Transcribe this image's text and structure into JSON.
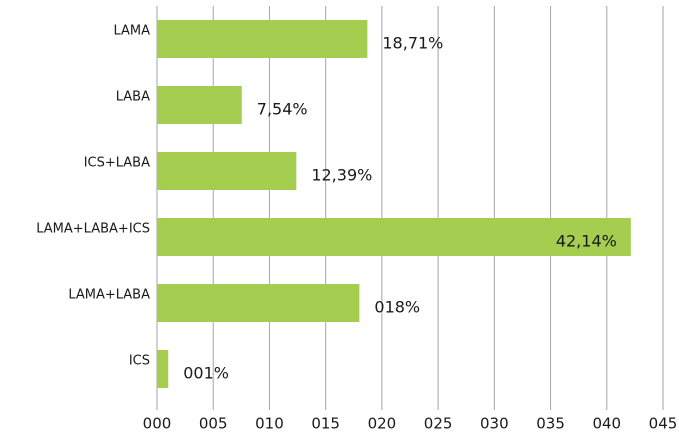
{
  "chart_data": {
    "type": "barh",
    "categories": [
      "LAMA",
      "LABA",
      "ICS+LABA",
      "LAMA+LABA+ICS",
      "LAMA+LABA",
      "ICS"
    ],
    "values": [
      18.71,
      7.54,
      12.39,
      42.14,
      18,
      1
    ],
    "value_labels": [
      "18,71%",
      "7,54%",
      "12,39%",
      "42,14%",
      "018%",
      "001%"
    ],
    "color": "#a5cd4f",
    "xlim": [
      0,
      45
    ],
    "xticks": [
      {
        "value": 0,
        "label": "000"
      },
      {
        "value": 5,
        "label": "005"
      },
      {
        "value": 10,
        "label": "010"
      },
      {
        "value": 15,
        "label": "015"
      },
      {
        "value": 20,
        "label": "020"
      },
      {
        "value": 25,
        "label": "025"
      },
      {
        "value": 30,
        "label": "030"
      },
      {
        "value": 35,
        "label": "035"
      },
      {
        "value": 40,
        "label": "040"
      },
      {
        "value": 45,
        "label": "045"
      }
    ],
    "grid": true
  }
}
